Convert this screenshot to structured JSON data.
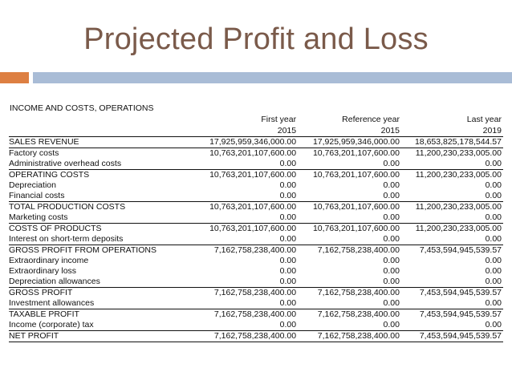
{
  "slide": {
    "title": "Projected Profit and Loss",
    "accent_orange": "#dd7f42",
    "accent_blue": "#a9bcd6",
    "title_color": "#7a5a4a"
  },
  "table": {
    "caption": "INCOME AND COSTS, OPERATIONS",
    "columns": [
      {
        "label": "First year",
        "year": "2015"
      },
      {
        "label": "Reference year",
        "year": "2015"
      },
      {
        "label": "Last year",
        "year": "2019"
      }
    ],
    "rows": [
      {
        "label": "SALES REVENUE",
        "v1": "17,925,959,346,000.00",
        "v2": "17,925,959,346,000.00",
        "v3": "18,653,825,178,544.57"
      },
      {
        "label": "Factory costs",
        "v1": "10,763,201,107,600.00",
        "v2": "10,763,201,107,600.00",
        "v3": "11,200,230,233,005.00"
      },
      {
        "label": "Administrative overhead costs",
        "v1": "0.00",
        "v2": "0.00",
        "v3": "0.00"
      },
      {
        "label": "OPERATING COSTS",
        "v1": "10,763,201,107,600.00",
        "v2": "10,763,201,107,600.00",
        "v3": "11,200,230,233,005.00"
      },
      {
        "label": "Depreciation",
        "v1": "0.00",
        "v2": "0.00",
        "v3": "0.00"
      },
      {
        "label": "Financial costs",
        "v1": "0.00",
        "v2": "0.00",
        "v3": "0.00"
      },
      {
        "label": "TOTAL PRODUCTION COSTS",
        "v1": "10,763,201,107,600.00",
        "v2": "10,763,201,107,600.00",
        "v3": "11,200,230,233,005.00"
      },
      {
        "label": "Marketing costs",
        "v1": "0.00",
        "v2": "0.00",
        "v3": "0.00"
      },
      {
        "label": "COSTS OF PRODUCTS",
        "v1": "10,763,201,107,600.00",
        "v2": "10,763,201,107,600.00",
        "v3": "11,200,230,233,005.00"
      },
      {
        "label": "Interest on short-term deposits",
        "v1": "0.00",
        "v2": "0.00",
        "v3": "0.00"
      },
      {
        "label": "GROSS PROFIT FROM OPERATIONS",
        "v1": "7,162,758,238,400.00",
        "v2": "7,162,758,238,400.00",
        "v3": "7,453,594,945,539.57"
      },
      {
        "label": "Extraordinary income",
        "v1": "0.00",
        "v2": "0.00",
        "v3": "0.00"
      },
      {
        "label": "Extraordinary loss",
        "v1": "0.00",
        "v2": "0.00",
        "v3": "0.00"
      },
      {
        "label": "Depreciation allowances",
        "v1": "0.00",
        "v2": "0.00",
        "v3": "0.00"
      },
      {
        "label": "GROSS PROFIT",
        "v1": "7,162,758,238,400.00",
        "v2": "7,162,758,238,400.00",
        "v3": "7,453,594,945,539.57"
      },
      {
        "label": "Investment allowances",
        "v1": "0.00",
        "v2": "0.00",
        "v3": "0.00"
      },
      {
        "label": "TAXABLE PROFIT",
        "v1": "7,162,758,238,400.00",
        "v2": "7,162,758,238,400.00",
        "v3": "7,453,594,945,539.57"
      },
      {
        "label": "Income (corporate) tax",
        "v1": "0.00",
        "v2": "0.00",
        "v3": "0.00"
      },
      {
        "label": "NET PROFIT",
        "v1": "7,162,758,238,400.00",
        "v2": "7,162,758,238,400.00",
        "v3": "7,453,594,945,539.57"
      }
    ]
  }
}
